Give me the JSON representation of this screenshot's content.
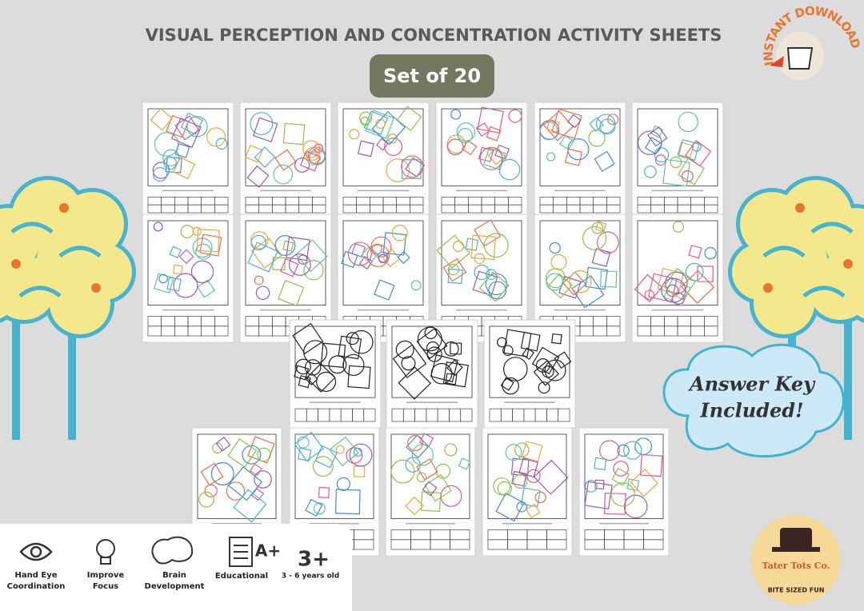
{
  "header": {
    "title": "VISUAL PERCEPTION AND CONCENTRATION ACTIVITY SHEETS",
    "subtitle": "Set of 20"
  },
  "badge": "INSTANT DOWNLOAD",
  "callout": [
    "Answer Key",
    "Included!"
  ],
  "features": [
    {
      "lines": [
        "Hand Eye",
        "Coordination"
      ]
    },
    {
      "lines": [
        "Improve",
        "Focus"
      ]
    },
    {
      "lines": [
        "Brain",
        "Development"
      ]
    },
    {
      "lines": [
        "Educational"
      ],
      "mark": "A+"
    },
    {
      "lines": [
        "3 - 6 years old"
      ],
      "mark": "3+"
    }
  ],
  "logo": {
    "name": "Tater Tots Co.",
    "tagline": "BITE SIZED FUN"
  }
}
